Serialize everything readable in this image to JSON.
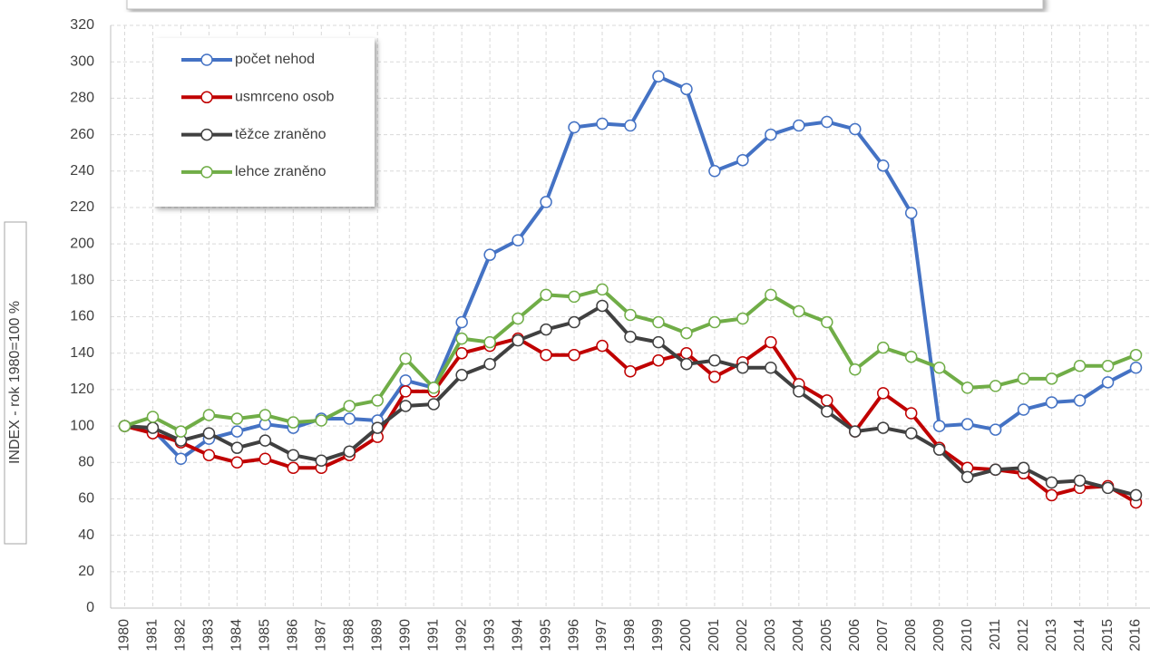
{
  "chart_data": {
    "type": "line",
    "y_label": "INDEX - rok 1980=100 %",
    "categories": [
      "1980",
      "1981",
      "1982",
      "1983",
      "1984",
      "1985",
      "1986",
      "1987",
      "1988",
      "1989",
      "1990",
      "1991",
      "1992",
      "1993",
      "1994",
      "1995",
      "1996",
      "1997",
      "1998",
      "1999",
      "2000",
      "2001",
      "2002",
      "2003",
      "2004",
      "2005",
      "2006",
      "2007",
      "2008",
      "2009",
      "2010",
      "2011",
      "2012",
      "2013",
      "2014",
      "2015",
      "2016"
    ],
    "series": [
      {
        "name": "počet nehod",
        "color": "#4472c4",
        "values": [
          100,
          98,
          82,
          93,
          97,
          101,
          99,
          104,
          104,
          103,
          125,
          121,
          157,
          194,
          202,
          223,
          264,
          266,
          265,
          292,
          285,
          240,
          246,
          260,
          265,
          267,
          263,
          243,
          217,
          100,
          101,
          98,
          109,
          113,
          114,
          124,
          132
        ]
      },
      {
        "name": "usmrceno osob",
        "color": "#c00000",
        "values": [
          100,
          96,
          91,
          84,
          80,
          82,
          77,
          77,
          84,
          94,
          119,
          119,
          140,
          144,
          148,
          139,
          139,
          144,
          130,
          136,
          140,
          127,
          135,
          146,
          123,
          114,
          97,
          118,
          107,
          88,
          77,
          76,
          74,
          62,
          66,
          67,
          58
        ]
      },
      {
        "name": "těžce zraněno",
        "color": "#404040",
        "values": [
          100,
          99,
          92,
          96,
          88,
          92,
          84,
          81,
          86,
          99,
          111,
          112,
          128,
          134,
          147,
          153,
          157,
          166,
          149,
          146,
          134,
          136,
          132,
          132,
          119,
          108,
          97,
          99,
          96,
          87,
          72,
          76,
          77,
          69,
          70,
          66,
          62
        ]
      },
      {
        "name": "lehce zraněno",
        "color": "#70ad47",
        "values": [
          100,
          105,
          97,
          106,
          104,
          106,
          102,
          103,
          111,
          114,
          137,
          121,
          148,
          146,
          159,
          172,
          171,
          175,
          161,
          157,
          151,
          157,
          159,
          172,
          163,
          157,
          131,
          143,
          138,
          132,
          121,
          122,
          126,
          126,
          133,
          133,
          139
        ]
      }
    ],
    "ylim": [
      0,
      320
    ],
    "yticks": [
      0,
      20,
      40,
      60,
      80,
      100,
      120,
      140,
      160,
      180,
      200,
      220,
      240,
      260,
      280,
      300,
      320
    ],
    "grid": true
  }
}
